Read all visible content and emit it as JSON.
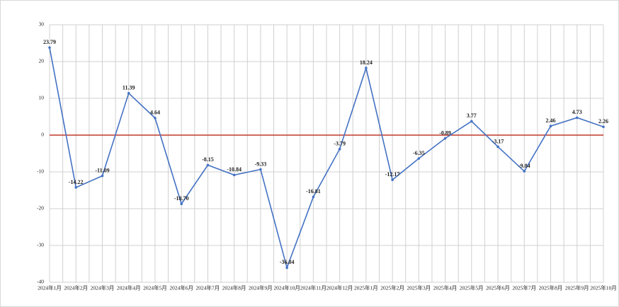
{
  "chart_data": {
    "type": "line",
    "categories": [
      "2024年1月",
      "2024年2月",
      "2024年3月",
      "2024年4月",
      "2024年5月",
      "2024年6月",
      "2024年7月",
      "2024年8月",
      "2024年9月",
      "2024年10月",
      "2024年11月",
      "2024年12月",
      "2025年1月",
      "2025年2月",
      "2025年3月",
      "2025年4月",
      "2025年5月",
      "2025年6月",
      "2025年7月",
      "2025年8月",
      "2025年9月",
      "2025年10月"
    ],
    "series": [
      {
        "color": "#4472c4",
        "values": [
          23.79,
          -14.22,
          -11.09,
          11.39,
          4.64,
          -18.7,
          -8.15,
          -10.84,
          -9.33,
          -36.04,
          -16.81,
          -3.79,
          18.24,
          -12.17,
          -6.35,
          -0.89,
          3.77,
          -3.17,
          -9.84,
          2.46,
          4.73,
          2.26
        ],
        "value_labels": [
          "23.79",
          "-14.22",
          "-11.09",
          "11.39",
          "4.64",
          "-18.70",
          "-8.15",
          "-10.84",
          "-9.33",
          "-36.04",
          "-16.81",
          "-3.79",
          "18.24",
          "-12.17",
          "-6.35",
          "-0.89",
          "3.77",
          "-3.17",
          "-9.84",
          "2.46",
          "4.73",
          "2.26"
        ]
      }
    ],
    "ylim": [
      -40,
      30
    ],
    "yticks": [
      -40,
      -30,
      -20,
      -10,
      0,
      10,
      20,
      30
    ],
    "grid": true,
    "zero_line_color": "#c0392b"
  }
}
